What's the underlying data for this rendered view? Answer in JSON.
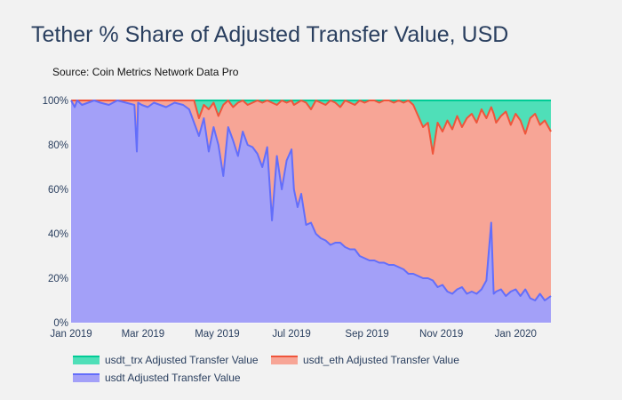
{
  "chart_data": {
    "type": "area",
    "title": "Tether % Share of Adjusted Transfer Value, USD",
    "subtitle": "Source: Coin Metrics Network Data Pro",
    "xlabel": "",
    "ylabel": "",
    "stacked": true,
    "x_range": [
      "2019-01-01",
      "2020-01-30"
    ],
    "y_range": [
      0,
      100
    ],
    "x_ticks": [
      {
        "date": "2019-01-01",
        "label": "Jan 2019"
      },
      {
        "date": "2019-03-01",
        "label": "Mar 2019"
      },
      {
        "date": "2019-05-01",
        "label": "May 2019"
      },
      {
        "date": "2019-07-01",
        "label": "Jul 2019"
      },
      {
        "date": "2019-09-01",
        "label": "Sep 2019"
      },
      {
        "date": "2019-11-01",
        "label": "Nov 2019"
      },
      {
        "date": "2020-01-01",
        "label": "Jan 2020"
      }
    ],
    "y_ticks": [
      {
        "value": 0,
        "label": "0%"
      },
      {
        "value": 20,
        "label": "20%"
      },
      {
        "value": 40,
        "label": "40%"
      },
      {
        "value": 60,
        "label": "60%"
      },
      {
        "value": 80,
        "label": "80%"
      },
      {
        "value": 100,
        "label": "100%"
      }
    ],
    "grid": true,
    "legend_position": "bottom",
    "x_dates": [
      "2019-01-01",
      "2019-01-04",
      "2019-01-06",
      "2019-01-10",
      "2019-01-15",
      "2019-01-20",
      "2019-01-25",
      "2019-02-01",
      "2019-02-08",
      "2019-02-15",
      "2019-02-22",
      "2019-02-24",
      "2019-02-25",
      "2019-02-28",
      "2019-03-05",
      "2019-03-10",
      "2019-03-15",
      "2019-03-20",
      "2019-03-27",
      "2019-04-03",
      "2019-04-08",
      "2019-04-12",
      "2019-04-16",
      "2019-04-20",
      "2019-04-24",
      "2019-04-28",
      "2019-05-02",
      "2019-05-06",
      "2019-05-10",
      "2019-05-14",
      "2019-05-18",
      "2019-05-22",
      "2019-05-26",
      "2019-05-30",
      "2019-06-03",
      "2019-06-07",
      "2019-06-11",
      "2019-06-15",
      "2019-06-19",
      "2019-06-23",
      "2019-06-27",
      "2019-07-01",
      "2019-07-03",
      "2019-07-06",
      "2019-07-09",
      "2019-07-13",
      "2019-07-17",
      "2019-07-21",
      "2019-07-25",
      "2019-07-29",
      "2019-08-02",
      "2019-08-06",
      "2019-08-10",
      "2019-08-14",
      "2019-08-18",
      "2019-08-22",
      "2019-08-26",
      "2019-08-30",
      "2019-09-03",
      "2019-09-07",
      "2019-09-11",
      "2019-09-15",
      "2019-09-19",
      "2019-09-23",
      "2019-09-27",
      "2019-10-01",
      "2019-10-05",
      "2019-10-09",
      "2019-10-13",
      "2019-10-17",
      "2019-10-21",
      "2019-10-25",
      "2019-10-29",
      "2019-11-02",
      "2019-11-06",
      "2019-11-10",
      "2019-11-14",
      "2019-11-18",
      "2019-11-22",
      "2019-11-26",
      "2019-11-30",
      "2019-12-04",
      "2019-12-08",
      "2019-12-12",
      "2019-12-14",
      "2019-12-16",
      "2019-12-20",
      "2019-12-24",
      "2019-12-28",
      "2020-01-01",
      "2020-01-05",
      "2020-01-09",
      "2020-01-13",
      "2020-01-17",
      "2020-01-21",
      "2020-01-25",
      "2020-01-30"
    ],
    "series": [
      {
        "name": "usdt_trx Adjusted Transfer Value",
        "color": "#4fdfb8",
        "line_color": "#00cc96",
        "cumulative_top": [
          100,
          100,
          100,
          100,
          100,
          100,
          100,
          100,
          100,
          100,
          100,
          100,
          100,
          100,
          100,
          100,
          100,
          100,
          100,
          100,
          100,
          100,
          100,
          100,
          100,
          100,
          100,
          100,
          100,
          100,
          100,
          100,
          100,
          100,
          100,
          100,
          100,
          100,
          100,
          100,
          100,
          100,
          100,
          100,
          100,
          100,
          100,
          100,
          100,
          100,
          100,
          100,
          100,
          100,
          100,
          100,
          100,
          100,
          100,
          100,
          100,
          100,
          100,
          100,
          100,
          100,
          100,
          100,
          100,
          100,
          100,
          100,
          100,
          100,
          100,
          100,
          100,
          100,
          100,
          100,
          100,
          100,
          100,
          100,
          100,
          100,
          100,
          100,
          100,
          100,
          100,
          100,
          100,
          100,
          100,
          100,
          100
        ]
      },
      {
        "name": "usdt_eth Adjusted Transfer Value",
        "color": "#f7a596",
        "line_color": "#ef553b",
        "cumulative_top": [
          100,
          100,
          100,
          100,
          100,
          100,
          100,
          100,
          100,
          100,
          100,
          100,
          100,
          100,
          100,
          100,
          100,
          100,
          100,
          100,
          100,
          100,
          92,
          98,
          96,
          99,
          93,
          98,
          100,
          97,
          99,
          100,
          98,
          99,
          100,
          99,
          100,
          99,
          98,
          100,
          99,
          100,
          98,
          99,
          100,
          99,
          96,
          100,
          99,
          98,
          100,
          99,
          97,
          100,
          99,
          98,
          100,
          99,
          100,
          100,
          99,
          100,
          100,
          99,
          100,
          99,
          100,
          98,
          93,
          88,
          90,
          76,
          90,
          86,
          91,
          87,
          93,
          88,
          92,
          94,
          90,
          96,
          92,
          97,
          94,
          90,
          93,
          95,
          89,
          94,
          91,
          85,
          92,
          94,
          89,
          91,
          86
        ]
      },
      {
        "name": "usdt Adjusted Transfer Value",
        "color": "#a3a0f8",
        "line_color": "#636efa",
        "cumulative_top": [
          100,
          97,
          100,
          98,
          99,
          100,
          99,
          98,
          100,
          99,
          98,
          77,
          99,
          98,
          97,
          99,
          98,
          97,
          99,
          98,
          96,
          90,
          84,
          92,
          77,
          88,
          80,
          66,
          88,
          82,
          75,
          86,
          80,
          79,
          76,
          70,
          79,
          46,
          75,
          60,
          73,
          78,
          60,
          52,
          58,
          44,
          45,
          40,
          38,
          37,
          35,
          36,
          36,
          34,
          33,
          33,
          30,
          29,
          28,
          28,
          27,
          27,
          26,
          26,
          25,
          24,
          22,
          22,
          21,
          20,
          20,
          19,
          16,
          17,
          14,
          13,
          15,
          16,
          13,
          14,
          13,
          15,
          19,
          45,
          13,
          14,
          15,
          12,
          14,
          15,
          12,
          15,
          11,
          10,
          13,
          10,
          12
        ]
      }
    ]
  }
}
